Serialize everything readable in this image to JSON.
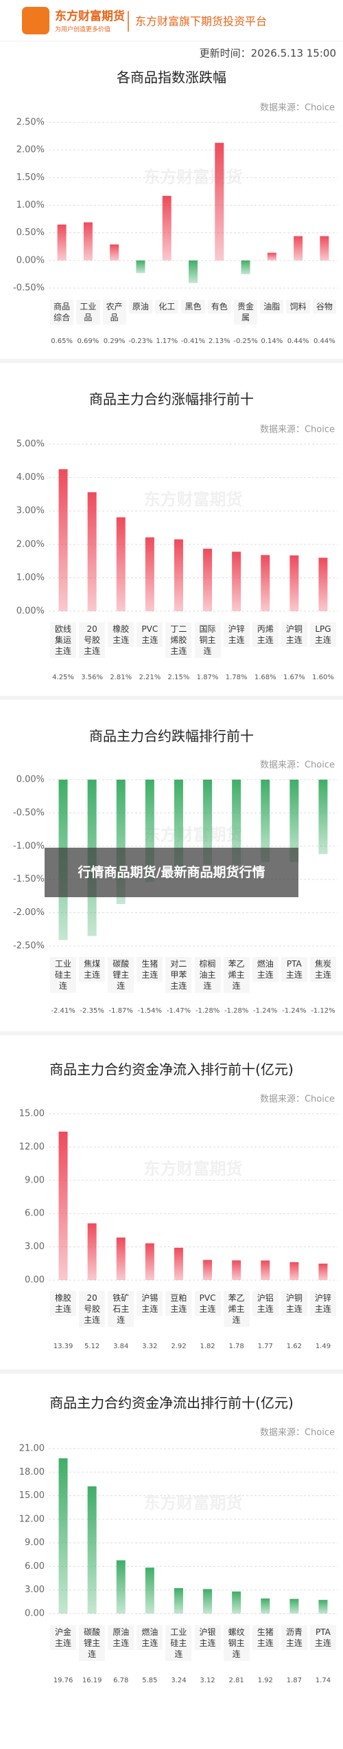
{
  "header": {
    "brand": "东方财富期货",
    "slogan": "为用户创造更多价值",
    "platform": "东方财富旗下期货投资平台",
    "update_time": "更新时间：2026.5.13 15:00"
  },
  "overlay": "行情商品期货/最新商品期货行情",
  "chart_data": [
    {
      "type": "bar",
      "title": "各商品指数涨跌幅",
      "source": "数据来源：Choice",
      "watermark": "东方财富期货",
      "categories": [
        "商品综合",
        "工业品",
        "农产品",
        "原油",
        "化工",
        "黑色",
        "有色",
        "贵金属",
        "油脂",
        "饲料",
        "谷物"
      ],
      "values": [
        0.65,
        0.69,
        0.29,
        -0.23,
        1.17,
        -0.41,
        2.13,
        -0.25,
        0.14,
        0.44,
        0.44
      ],
      "value_labels": [
        "0.65%",
        "0.69%",
        "0.29%",
        "-0.23%",
        "1.17%",
        "-0.41%",
        "2.13%",
        "-0.25%",
        "0.14%",
        "0.44%",
        "0.44%"
      ],
      "ylim": [
        -0.5,
        2.5
      ],
      "yticks": [
        {
          "value": -0.5,
          "label": "-0.50%"
        },
        {
          "value": 0,
          "label": "0.00%"
        },
        {
          "value": 0.5,
          "label": "0.50%"
        },
        {
          "value": 1,
          "label": "1.00%"
        },
        {
          "value": 1.5,
          "label": "1.50%"
        },
        {
          "value": 2,
          "label": "2.00%"
        },
        {
          "value": 2.5,
          "label": "2.50%"
        }
      ],
      "grid": true,
      "color": "#ee4b5b",
      "negative_color": "#3fae67"
    },
    {
      "type": "bar",
      "title": "商品主力合约涨幅排行前十",
      "source": "数据来源：Choice",
      "watermark": "东方财富期货",
      "categories": [
        "欧线集运主连",
        "20号胶主连",
        "橡胶主连",
        "PVC主连",
        "丁二烯胶主连",
        "国际铜主连",
        "沪锌主连",
        "丙烯主连",
        "沪铜主连",
        "LPG主连"
      ],
      "values": [
        4.25,
        3.56,
        2.81,
        2.21,
        2.15,
        1.87,
        1.78,
        1.68,
        1.67,
        1.6
      ],
      "value_labels": [
        "4.25%",
        "3.56%",
        "2.81%",
        "2.21%",
        "2.15%",
        "1.87%",
        "1.78%",
        "1.68%",
        "1.67%",
        "1.60%"
      ],
      "ylim": [
        0,
        5
      ],
      "yticks": [
        {
          "value": 0,
          "label": "0.00%"
        },
        {
          "value": 1,
          "label": "1.00%"
        },
        {
          "value": 2,
          "label": "2.00%"
        },
        {
          "value": 3,
          "label": "3.00%"
        },
        {
          "value": 4,
          "label": "4.00%"
        },
        {
          "value": 5,
          "label": "5.00%"
        }
      ],
      "grid": true,
      "color": "#ee4b5b"
    },
    {
      "type": "bar",
      "title": "商品主力合约跌幅排行前十",
      "source": "数据来源：Choice",
      "watermark": "东方财富期货",
      "categories": [
        "工业硅主连",
        "焦煤主连",
        "碳酸锂主连",
        "生猪主连",
        "对二甲苯主连",
        "棕榈油主连",
        "苯乙烯主连",
        "燃油主连",
        "PTA主连",
        "焦炭主连"
      ],
      "values": [
        -2.41,
        -2.35,
        -1.87,
        -1.54,
        -1.47,
        -1.28,
        -1.28,
        -1.24,
        -1.24,
        -1.12
      ],
      "value_labels": [
        "-2.41%",
        "-2.35%",
        "-1.87%",
        "-1.54%",
        "-1.47%",
        "-1.28%",
        "-1.28%",
        "-1.24%",
        "-1.24%",
        "-1.12%"
      ],
      "ylim": [
        -2.5,
        0
      ],
      "yticks": [
        {
          "value": -2.5,
          "label": "-2.50%"
        },
        {
          "value": -2,
          "label": "-2.00%"
        },
        {
          "value": -1.5,
          "label": "-1.50%"
        },
        {
          "value": -1,
          "label": "-1.00%"
        },
        {
          "value": -0.5,
          "label": "-0.50%"
        },
        {
          "value": 0,
          "label": "0.00%"
        }
      ],
      "grid": true,
      "color": "#3fae67"
    },
    {
      "type": "bar",
      "title": "商品主力合约资金净流入排行前十(亿元)",
      "source": "数据来源：Choice",
      "watermark": "东方财富期货",
      "categories": [
        "橡胶主连",
        "20号胶主连",
        "铁矿石主连",
        "沪锡主连",
        "豆粕主连",
        "PVC主连",
        "苯乙烯主连",
        "沪铝主连",
        "沪铜主连",
        "沪锌主连"
      ],
      "values": [
        13.39,
        5.12,
        3.84,
        3.32,
        2.92,
        1.82,
        1.78,
        1.77,
        1.62,
        1.49
      ],
      "ylim": [
        0,
        15
      ],
      "yticks": [
        {
          "value": 0,
          "label": "0.00"
        },
        {
          "value": 3,
          "label": "3.00"
        },
        {
          "value": 6,
          "label": "6.00"
        },
        {
          "value": 9,
          "label": "9.00"
        },
        {
          "value": 12,
          "label": "12.00"
        },
        {
          "value": 15,
          "label": "15.00"
        }
      ],
      "grid": true,
      "color": "#ee4b5b"
    },
    {
      "type": "bar",
      "title": "商品主力合约资金净流出排行前十(亿元)",
      "source": "数据来源：Choice",
      "watermark": "东方财富期货",
      "categories": [
        "沪金主连",
        "碳酸锂主连",
        "原油主连",
        "燃油主连",
        "工业硅主连",
        "沪银主连",
        "螺纹钢主连",
        "生猪主连",
        "沥青主连",
        "PTA主连"
      ],
      "values": [
        19.76,
        16.19,
        6.78,
        5.85,
        3.24,
        3.12,
        2.81,
        1.92,
        1.87,
        1.74
      ],
      "ylim": [
        0,
        21
      ],
      "yticks": [
        {
          "value": 0,
          "label": "0.00"
        },
        {
          "value": 3,
          "label": "3.00"
        },
        {
          "value": 6,
          "label": "6.00"
        },
        {
          "value": 9,
          "label": "9.00"
        },
        {
          "value": 12,
          "label": "12.00"
        },
        {
          "value": 15,
          "label": "15.00"
        },
        {
          "value": 18,
          "label": "18.00"
        },
        {
          "value": 21,
          "label": "21.00"
        }
      ],
      "grid": true,
      "color": "#3fae67"
    }
  ]
}
